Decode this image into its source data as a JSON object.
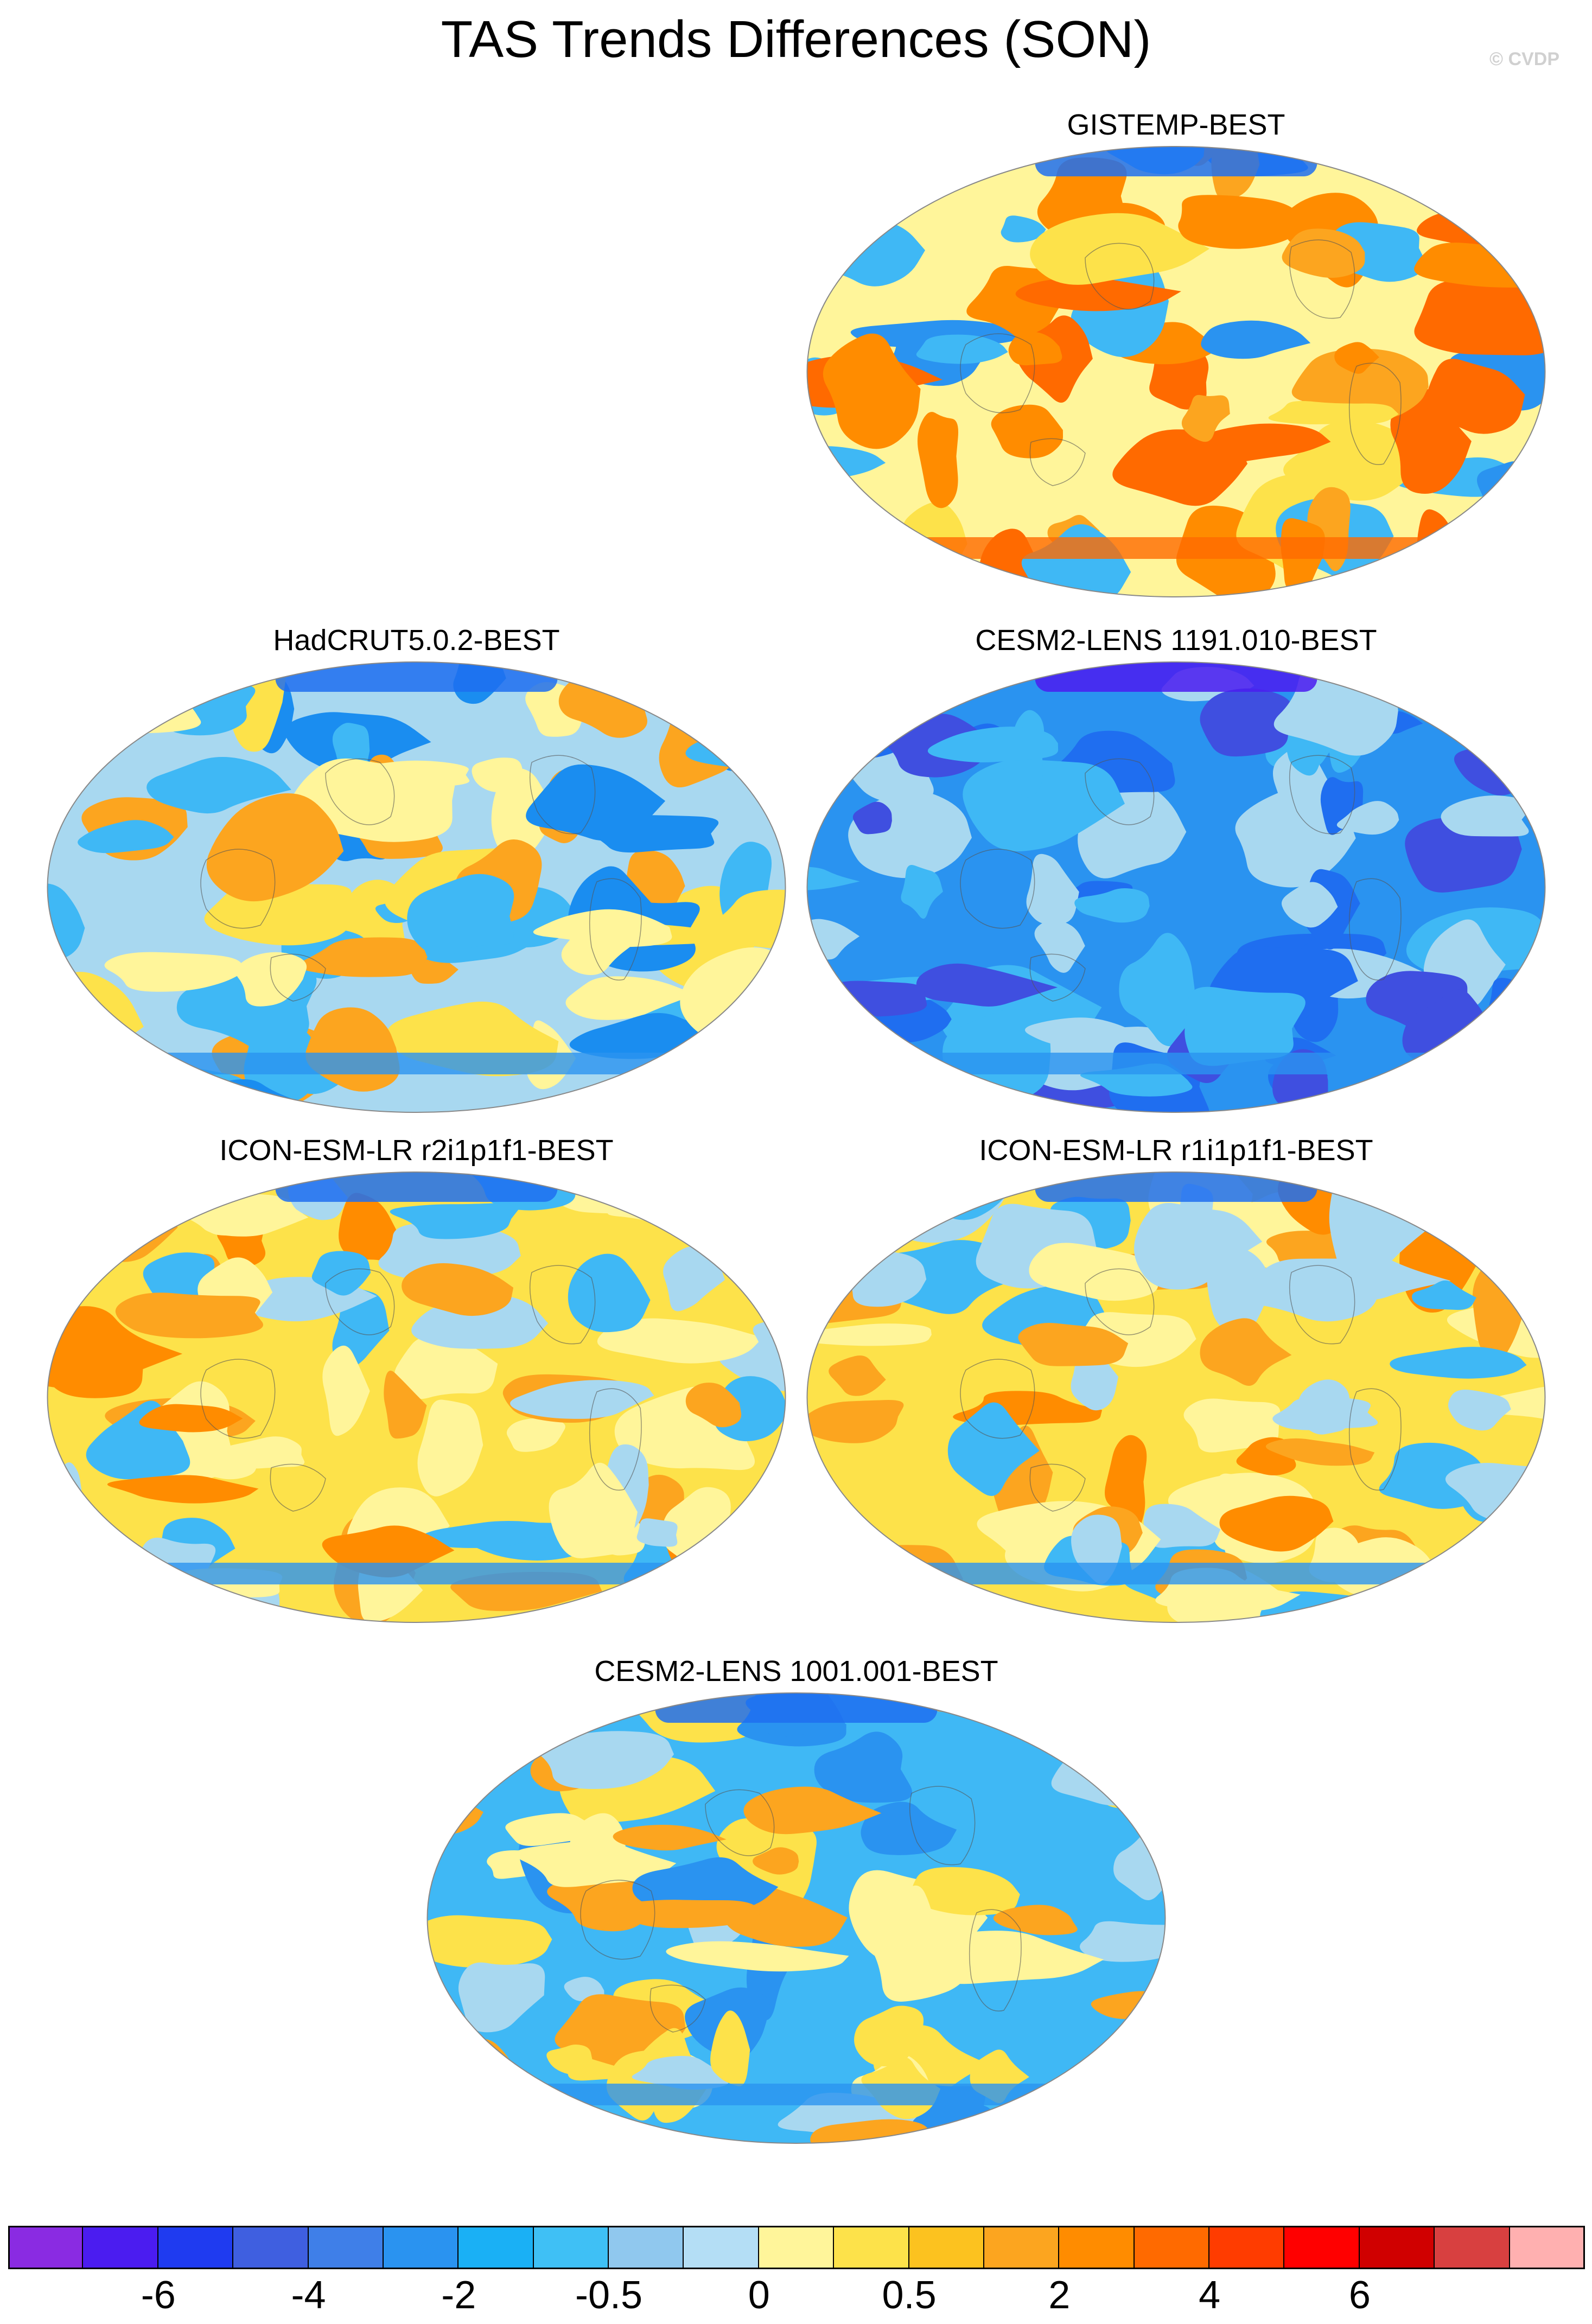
{
  "title": "TAS Trends Differences (SON)",
  "watermark": "© CVDP",
  "panels": [
    {
      "title": "GISTEMP-BEST",
      "base": "#fff59a",
      "palette": [
        "#3fb8f5",
        "#fde24a",
        "#2a93f0",
        "#fca51f",
        "#ff6a00",
        "#ff8c00"
      ],
      "seed": 3
    },
    {
      "title": "HadCRUT5.0.2-BEST",
      "base": "#a8d8f0",
      "palette": [
        "#3fb8f5",
        "#fff59a",
        "#fde24a",
        "#fca51f",
        "#1a8df0"
      ],
      "seed": 11
    },
    {
      "title": "CESM2-LENS 1191.010-BEST",
      "base": "#2a93f0",
      "palette": [
        "#3fb8f5",
        "#1f6ef0",
        "#a8d8f0",
        "#3f4fe0"
      ],
      "seed": 7
    },
    {
      "title": "ICON-ESM-LR r2i1p1f1-BEST",
      "base": "#fde24a",
      "palette": [
        "#fca51f",
        "#fff59a",
        "#3fb8f5",
        "#ff8c00",
        "#a8d8f0"
      ],
      "seed": 19
    },
    {
      "title": "ICON-ESM-LR r1i1p1f1-BEST",
      "base": "#fde24a",
      "palette": [
        "#fca51f",
        "#fff59a",
        "#a8d8f0",
        "#ff8c00",
        "#3fb8f5"
      ],
      "seed": 23
    },
    {
      "title": "CESM2-LENS 1001.001-BEST",
      "base": "#3fb8f5",
      "palette": [
        "#a8d8f0",
        "#fff59a",
        "#fde24a",
        "#2a93f0",
        "#fca51f"
      ],
      "seed": 31
    }
  ],
  "colorbar": {
    "colors": [
      "#8a2be2",
      "#4b1cf0",
      "#1f3bf0",
      "#3f5fe0",
      "#3f7fe8",
      "#2a93f0",
      "#1ab0f5",
      "#3fc0f5",
      "#90c8ee",
      "#b4def5",
      "#fff59a",
      "#fde24a",
      "#fcc21f",
      "#fca51f",
      "#ff8c00",
      "#ff6a00",
      "#ff3c00",
      "#ff0000",
      "#d00000",
      "#d84040",
      "#ffb0b0"
    ],
    "labels": [
      "-6",
      "-4",
      "-2",
      "-0.5",
      "0",
      "0.5",
      "2",
      "4",
      "6"
    ]
  }
}
